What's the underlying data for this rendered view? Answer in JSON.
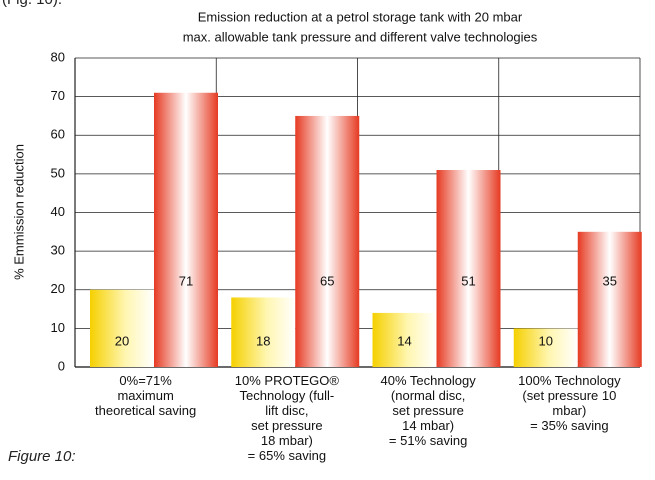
{
  "header_text": "(Fig. 10).",
  "caption": "Figure 10:",
  "chart_data": {
    "type": "bar",
    "title": [
      "Emission reduction at a petrol storage tank with 20 mbar",
      "max. allowable tank pressure and different valve technologies"
    ],
    "y_label": "% Emmission reduction",
    "categories": [
      "0%=71%\nmaximum\ntheoretical saving",
      "10% PROTEGO®\nTechnology (full-\nlift disc,\nset pressure\n18 mbar)\n= 65% saving",
      "40% Technology\n(normal disc,\nset pressure\n14 mbar)\n= 51% saving",
      "100% Technology\n(set pressure 10\nmbar)\n= 35% saving"
    ],
    "series": [
      {
        "color": "#f5d000",
        "values": [
          20,
          18,
          14,
          10
        ]
      },
      {
        "color": "#e63a22",
        "values": [
          71,
          65,
          51,
          35
        ]
      }
    ],
    "ylim": [
      0,
      80
    ],
    "yticks": [
      0,
      10,
      20,
      30,
      40,
      50,
      60,
      70,
      80
    ],
    "grid": true
  }
}
